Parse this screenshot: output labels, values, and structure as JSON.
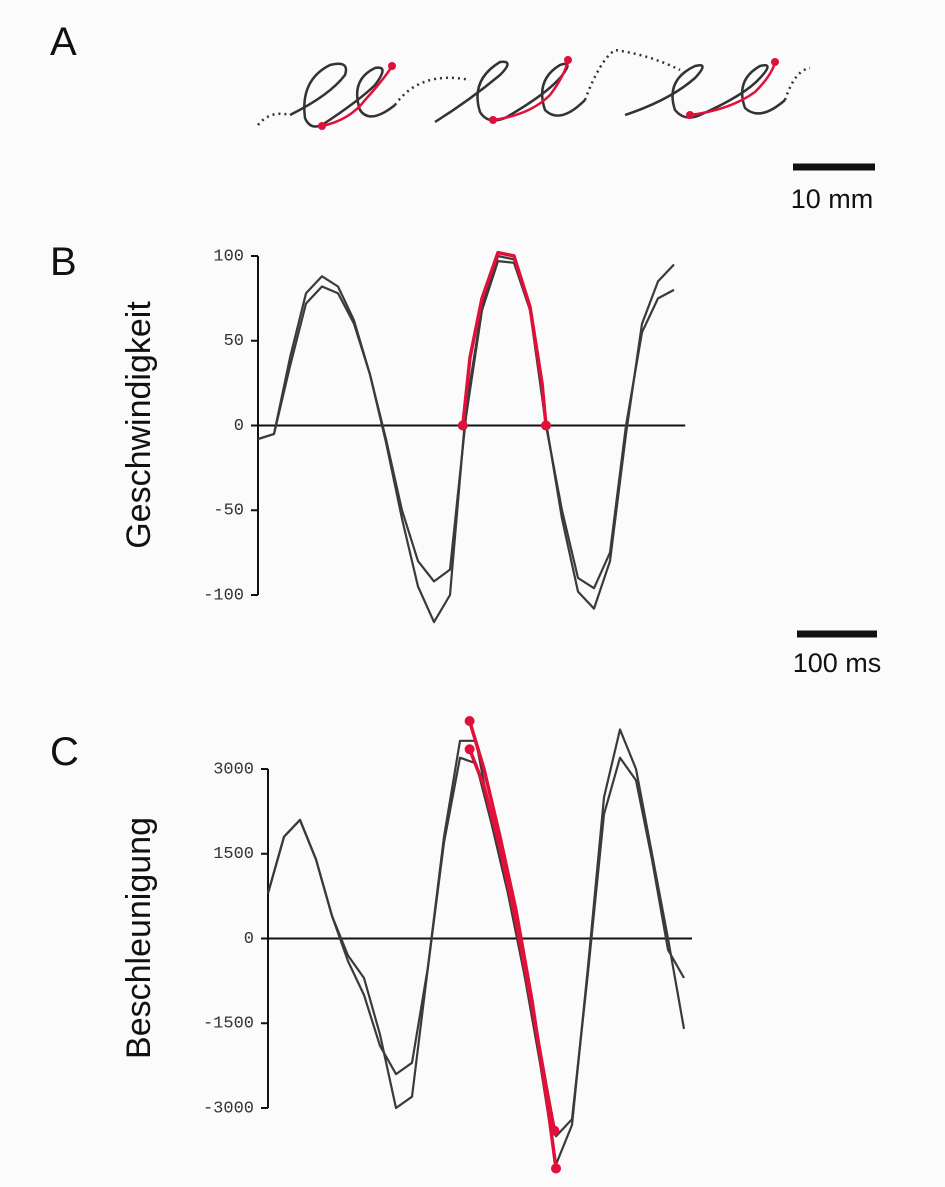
{
  "panel_a": {
    "label": "A",
    "scalebar_label": "10 mm"
  },
  "chart_data": [
    {
      "type": "line",
      "label": "B",
      "ylabel": "Geschwindigkeit",
      "xlim": [
        0,
        534
      ],
      "ylim": [
        -100,
        100
      ],
      "yticks": [
        100,
        50,
        0,
        -50,
        -100
      ],
      "scalebar": {
        "value": 100,
        "label": "100 ms"
      },
      "series": [
        {
          "color": "#3a3a3a",
          "x": [
            0,
            20,
            40,
            60,
            80,
            100,
            120,
            140,
            160,
            180,
            200,
            220,
            240,
            260,
            280,
            300,
            320,
            340,
            360,
            380,
            400,
            420,
            440,
            460,
            480,
            500,
            520
          ],
          "values": [
            -8,
            -5,
            40,
            78,
            88,
            82,
            62,
            30,
            -10,
            -55,
            -95,
            -116,
            -100,
            10,
            70,
            100,
            98,
            70,
            2,
            -55,
            -98,
            -108,
            -80,
            -5,
            60,
            85,
            95
          ]
        },
        {
          "color": "#3a3a3a",
          "x": [
            0,
            20,
            40,
            60,
            80,
            100,
            120,
            140,
            160,
            180,
            200,
            220,
            240,
            260,
            280,
            300,
            320,
            340,
            360,
            380,
            400,
            420,
            440,
            460,
            480,
            500,
            520
          ],
          "values": [
            -8,
            -5,
            35,
            72,
            82,
            78,
            60,
            30,
            -8,
            -50,
            -80,
            -92,
            -85,
            5,
            68,
            97,
            96,
            68,
            0,
            -50,
            -90,
            -96,
            -75,
            0,
            55,
            75,
            80
          ]
        },
        {
          "color": "#e0103a",
          "x": [
            256,
            265,
            280,
            300,
            320,
            340,
            355,
            360
          ],
          "values": [
            0,
            40,
            75,
            102,
            100,
            70,
            25,
            0
          ]
        }
      ]
    },
    {
      "type": "line",
      "label": "C",
      "ylabel": "Beschleunigung",
      "xlim": [
        0,
        530
      ],
      "ylim": [
        -3000,
        3000
      ],
      "yticks": [
        3000,
        1500,
        0,
        -1500,
        -3000
      ],
      "series": [
        {
          "color": "#3a3a3a",
          "x": [
            0,
            20,
            40,
            60,
            80,
            100,
            120,
            140,
            160,
            180,
            200,
            220,
            240,
            260,
            280,
            300,
            320,
            340,
            360,
            380,
            400,
            420,
            440,
            460,
            480,
            500,
            520
          ],
          "values": [
            800,
            1800,
            2100,
            1400,
            400,
            -300,
            -700,
            -1700,
            -3000,
            -2800,
            -500,
            1800,
            3500,
            3500,
            2000,
            800,
            -600,
            -2200,
            -4000,
            -3300,
            -500,
            2500,
            3700,
            3000,
            1500,
            0,
            -1600
          ]
        },
        {
          "color": "#3a3a3a",
          "x": [
            0,
            20,
            40,
            60,
            80,
            100,
            120,
            140,
            160,
            180,
            200,
            220,
            240,
            260,
            280,
            300,
            320,
            340,
            360,
            380,
            400,
            420,
            440,
            460,
            480,
            500,
            520
          ],
          "values": [
            800,
            1800,
            2100,
            1400,
            400,
            -400,
            -1000,
            -1900,
            -2400,
            -2200,
            -500,
            1700,
            3200,
            3100,
            2000,
            800,
            -600,
            -2000,
            -3500,
            -3200,
            -600,
            2200,
            3200,
            2800,
            1400,
            -200,
            -700
          ]
        },
        {
          "color": "#e0103a",
          "x": [
            252,
            270,
            290,
            310,
            330,
            350,
            360
          ],
          "values": [
            3850,
            3000,
            1800,
            500,
            -1100,
            -3000,
            -4070
          ]
        },
        {
          "color": "#e0103a",
          "x": [
            252,
            270,
            290,
            310,
            330,
            350,
            358
          ],
          "values": [
            3350,
            2700,
            1600,
            300,
            -1200,
            -2800,
            -3400
          ]
        }
      ]
    }
  ]
}
